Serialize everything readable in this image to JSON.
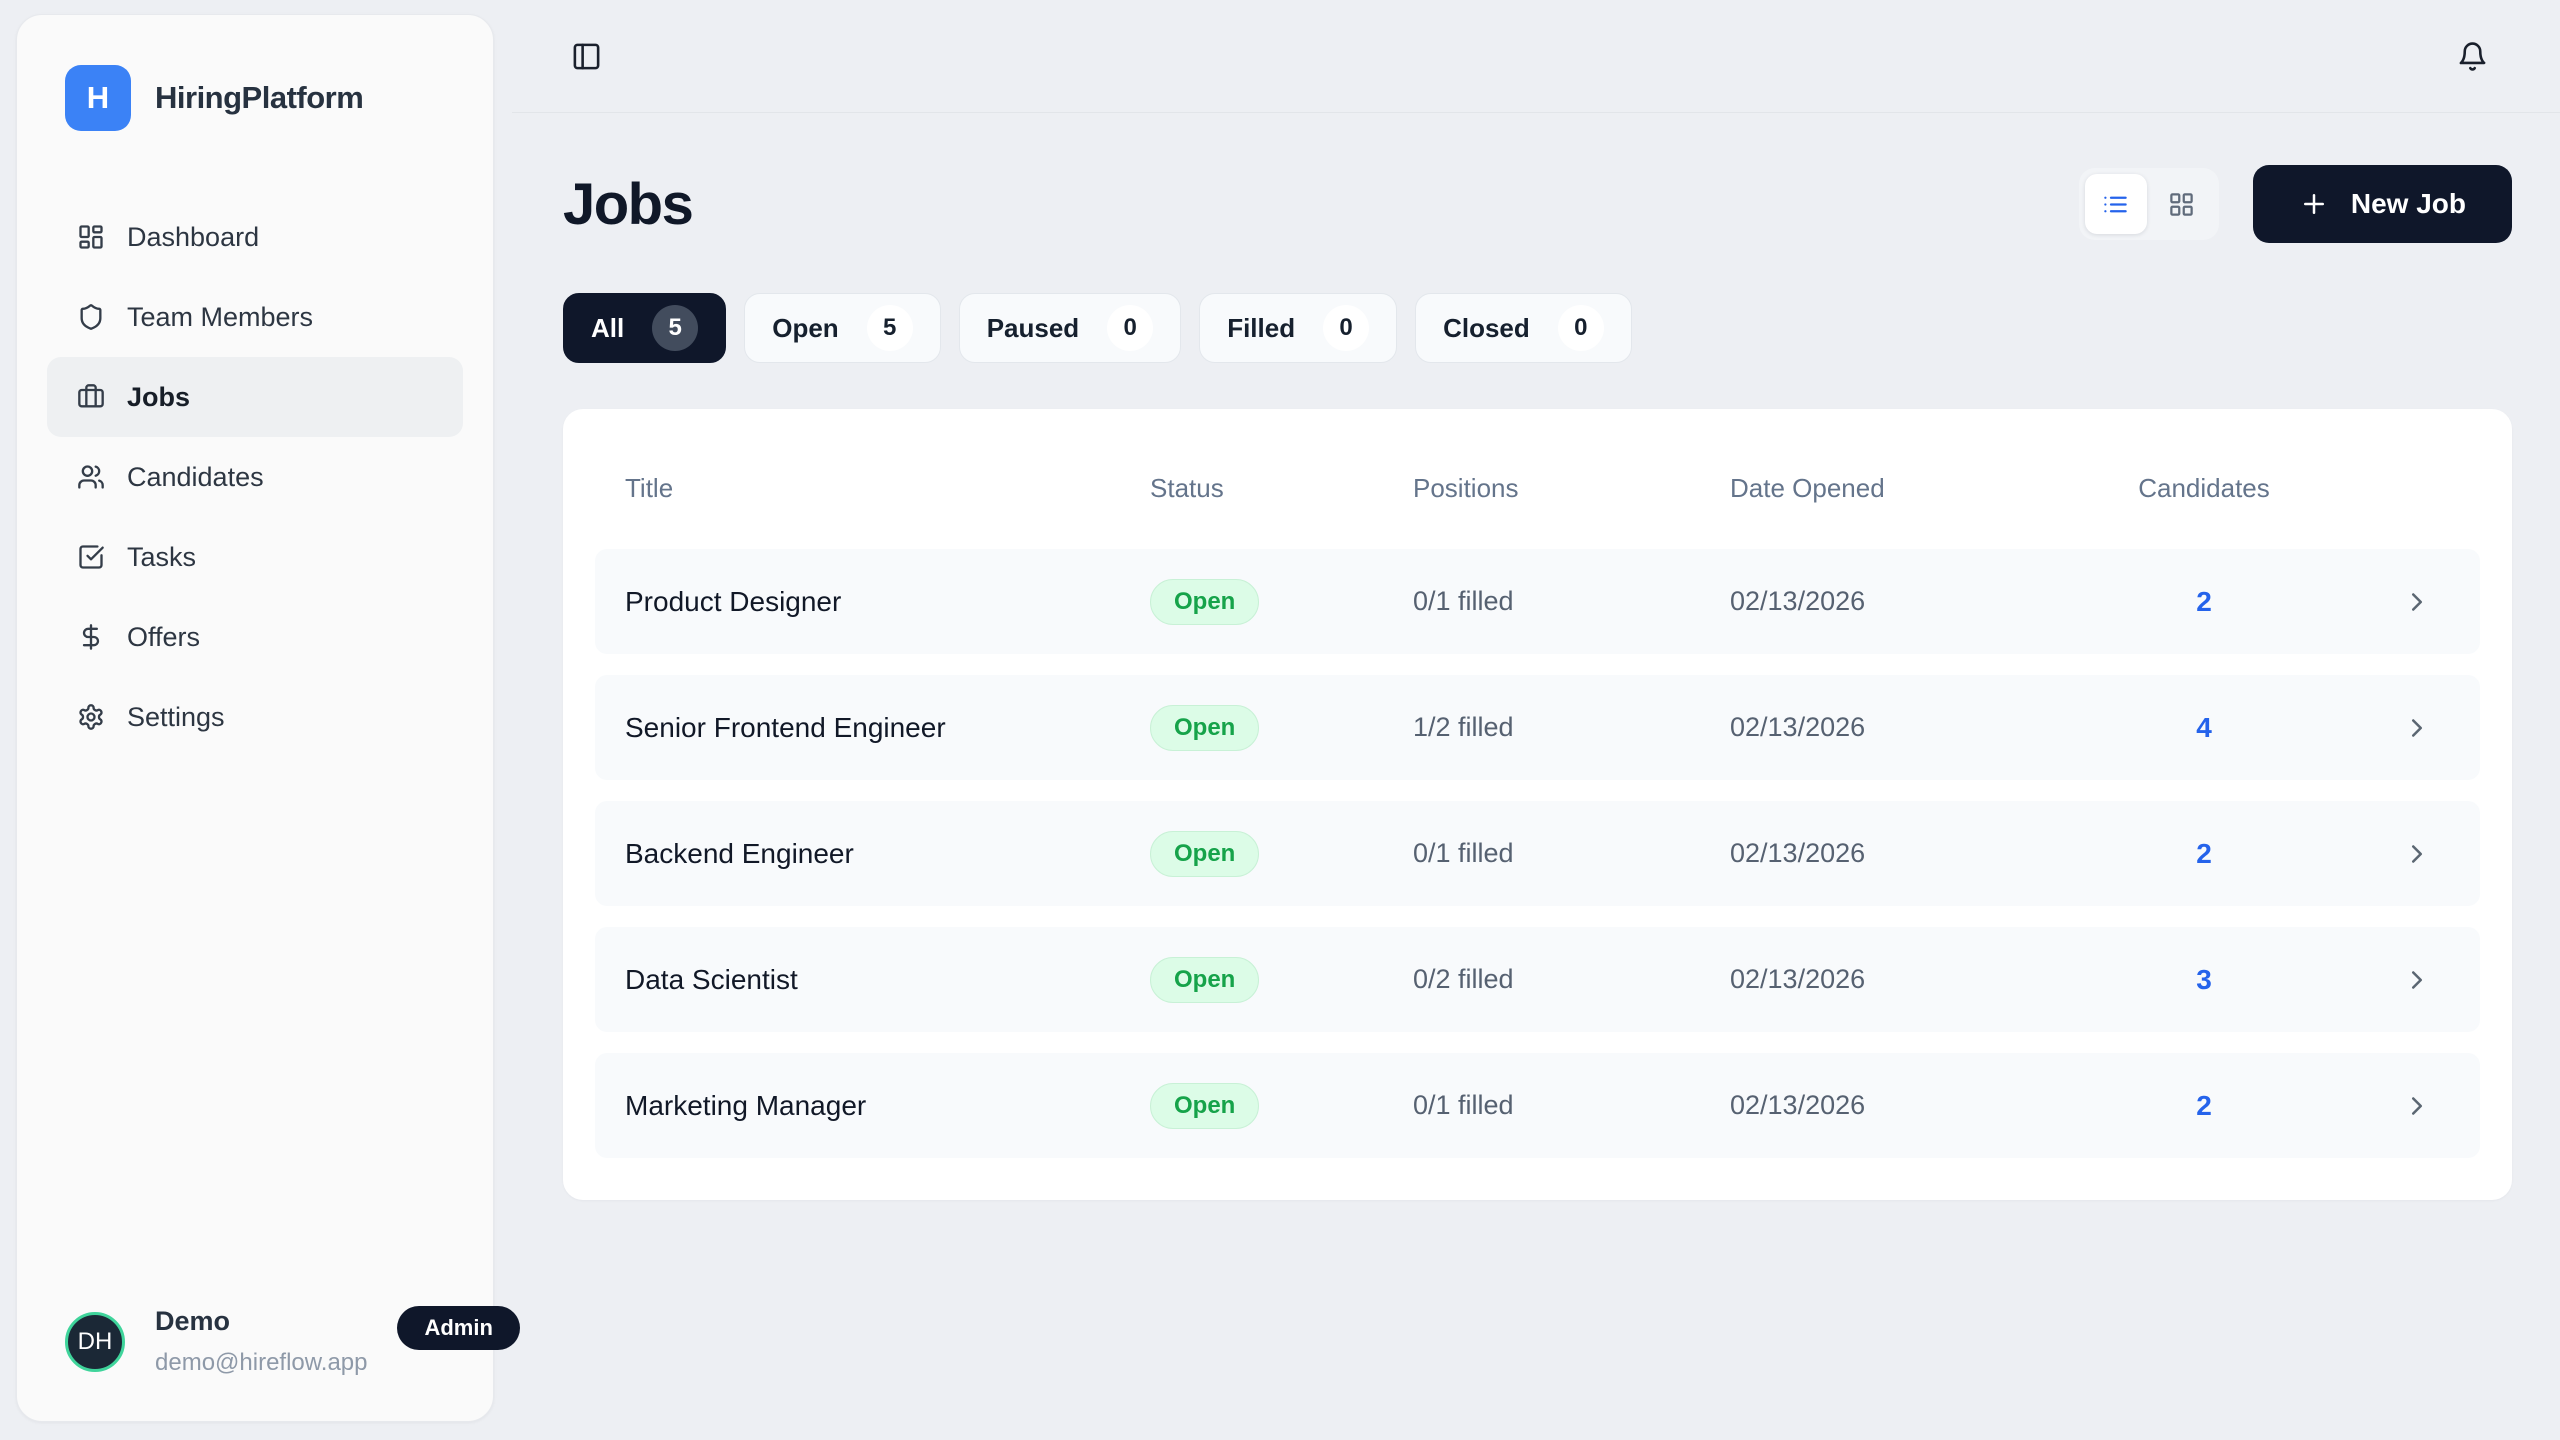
{
  "brand": {
    "logo_letter": "H",
    "name": "HiringPlatform"
  },
  "sidebar": {
    "items": [
      {
        "label": "Dashboard",
        "icon": "dashboard-icon",
        "active": false
      },
      {
        "label": "Team Members",
        "icon": "shield-icon",
        "active": false
      },
      {
        "label": "Jobs",
        "icon": "briefcase-icon",
        "active": true
      },
      {
        "label": "Candidates",
        "icon": "users-icon",
        "active": false
      },
      {
        "label": "Tasks",
        "icon": "check-square-icon",
        "active": false
      },
      {
        "label": "Offers",
        "icon": "dollar-icon",
        "active": false
      },
      {
        "label": "Settings",
        "icon": "gear-icon",
        "active": false
      }
    ],
    "user": {
      "initials": "DH",
      "name": "Demo",
      "role_badge": "Admin",
      "email": "demo@hireflow.app"
    }
  },
  "header": {
    "title": "Jobs",
    "new_job_label": "New Job"
  },
  "filters": [
    {
      "label": "All",
      "count": "5",
      "active": true
    },
    {
      "label": "Open",
      "count": "5",
      "active": false
    },
    {
      "label": "Paused",
      "count": "0",
      "active": false
    },
    {
      "label": "Filled",
      "count": "0",
      "active": false
    },
    {
      "label": "Closed",
      "count": "0",
      "active": false
    }
  ],
  "table": {
    "columns": [
      "Title",
      "Status",
      "Positions",
      "Date Opened",
      "Candidates"
    ],
    "rows": [
      {
        "title": "Product Designer",
        "status": "Open",
        "positions": "0/1 filled",
        "date_opened": "02/13/2026",
        "candidates": "2"
      },
      {
        "title": "Senior Frontend Engineer",
        "status": "Open",
        "positions": "1/2 filled",
        "date_opened": "02/13/2026",
        "candidates": "4"
      },
      {
        "title": "Backend Engineer",
        "status": "Open",
        "positions": "0/1 filled",
        "date_opened": "02/13/2026",
        "candidates": "2"
      },
      {
        "title": "Data Scientist",
        "status": "Open",
        "positions": "0/2 filled",
        "date_opened": "02/13/2026",
        "candidates": "3"
      },
      {
        "title": "Marketing Manager",
        "status": "Open",
        "positions": "0/1 filled",
        "date_opened": "02/13/2026",
        "candidates": "2"
      }
    ]
  },
  "colors": {
    "page_background": "#edeff3",
    "sidebar_background": "#fafafa",
    "brand_blue": "#3b82f6",
    "dark_navy": "#0f172a",
    "accent_blue": "#2563eb",
    "open_chip_background": "#dcfce7",
    "open_chip_text": "#16a34a",
    "avatar_ring_green": "#3fd49b",
    "muted_text": "#64748b"
  }
}
